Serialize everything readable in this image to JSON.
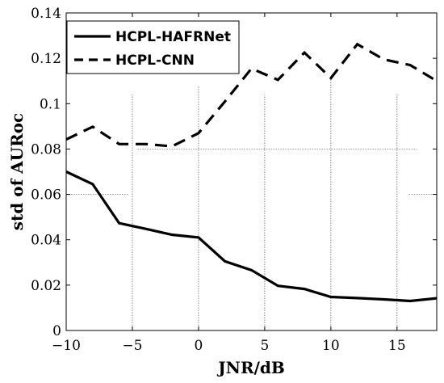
{
  "chart_data": {
    "type": "line",
    "xlabel": "JNR/dB",
    "ylabel": "std of AURoc",
    "xlim": [
      -10,
      18
    ],
    "ylim": [
      0,
      0.14
    ],
    "x_ticks": [
      -10,
      -5,
      0,
      5,
      10,
      15
    ],
    "x_tick_labels": [
      "−10",
      "−5",
      "0",
      "5",
      "10",
      "15"
    ],
    "y_ticks": [
      0,
      0.02,
      0.04,
      0.06,
      0.08,
      0.1,
      0.12,
      0.14
    ],
    "y_tick_labels": [
      "0",
      "0.02",
      "0.04",
      "0.06",
      "0.08",
      "0.1",
      "0.12",
      "0.14"
    ],
    "grid": "partial dotted",
    "legend_position": "top-left",
    "series": [
      {
        "name": "HCPL-HAFRNet",
        "style": "solid",
        "color": "#000000",
        "x": [
          -10,
          -8,
          -6,
          -4,
          -2,
          0,
          2,
          4,
          6,
          8,
          10,
          12,
          14,
          16,
          18
        ],
        "y": [
          0.07,
          0.0645,
          0.0473,
          0.0448,
          0.0422,
          0.041,
          0.0305,
          0.0266,
          0.0197,
          0.0183,
          0.0148,
          0.0143,
          0.0137,
          0.013,
          0.0142
        ]
      },
      {
        "name": "HCPL-CNN",
        "style": "dashed",
        "color": "#000000",
        "x": [
          -10,
          -8,
          -6,
          -4,
          -2,
          0,
          2,
          4,
          6,
          8,
          10,
          12,
          14,
          16,
          18
        ],
        "y": [
          0.0842,
          0.0898,
          0.0822,
          0.0822,
          0.0812,
          0.087,
          0.101,
          0.1155,
          0.1105,
          0.1225,
          0.1113,
          0.1262,
          0.1195,
          0.117,
          0.11
        ]
      }
    ]
  }
}
